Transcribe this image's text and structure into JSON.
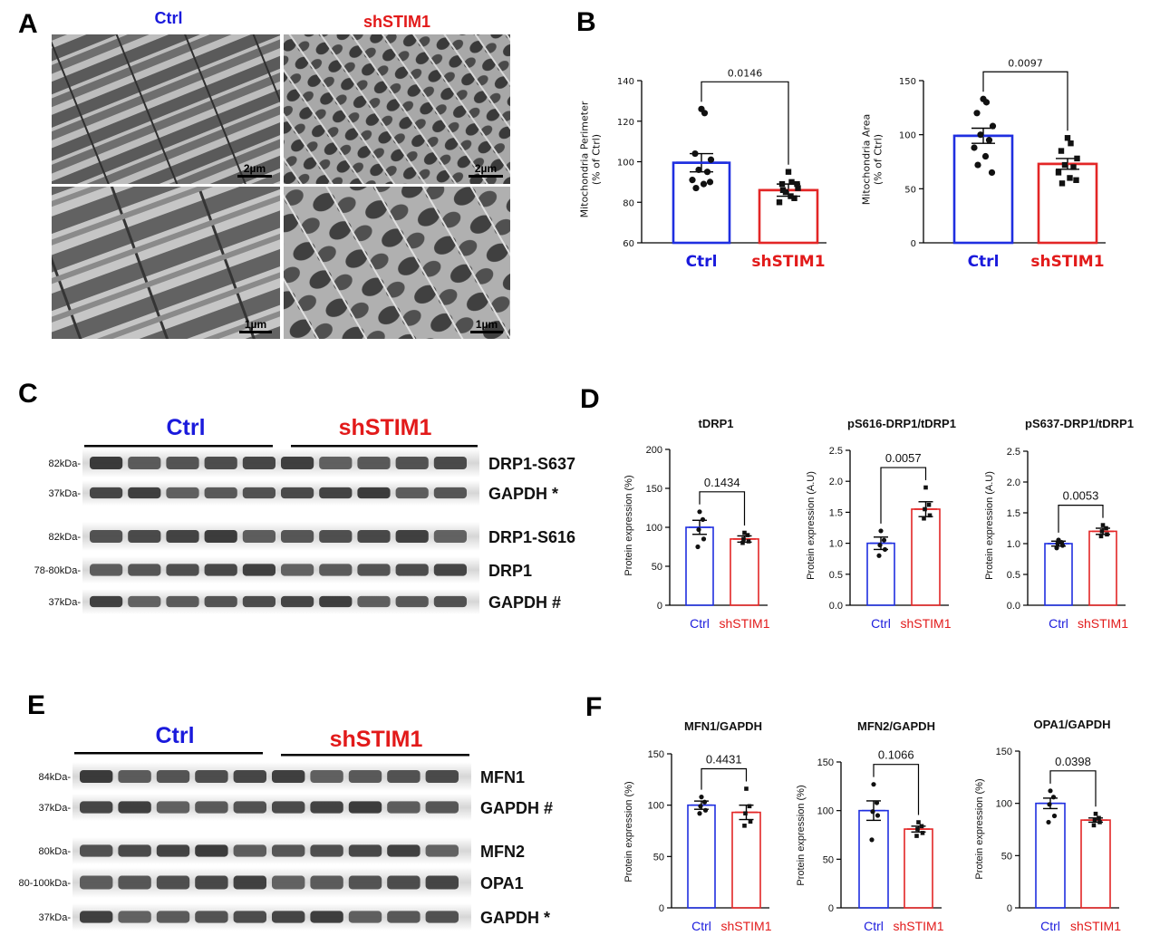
{
  "colors": {
    "ctrl": "#1a1adc",
    "sh": "#e21a1a",
    "bar_ctrl": "#1f2fe0",
    "bar_sh": "#e32626"
  },
  "panels": {
    "A": {
      "letter": "A",
      "ctrl_label": "Ctrl",
      "sh_label": "shSTIM1",
      "scale_top_left": "2µm",
      "scale_top_right": "2µm",
      "scale_bottom_left": "1µm",
      "scale_bottom_right": "1µm"
    },
    "B": {
      "letter": "B"
    },
    "C": {
      "letter": "C",
      "ctrl_label": "Ctrl",
      "sh_label": "shSTIM1",
      "rows": [
        {
          "mw": "82kDa-",
          "protein": "DRP1-S637"
        },
        {
          "mw": "37kDa-",
          "protein": "GAPDH *"
        },
        {
          "mw": "82kDa-",
          "protein": "DRP1-S616"
        },
        {
          "mw": "78-80kDa-",
          "protein": "DRP1"
        },
        {
          "mw": "37kDa-",
          "protein": "GAPDH #"
        }
      ]
    },
    "D": {
      "letter": "D"
    },
    "E": {
      "letter": "E",
      "ctrl_label": "Ctrl",
      "sh_label": "shSTIM1",
      "rows": [
        {
          "mw": "84kDa-",
          "protein": "MFN1"
        },
        {
          "mw": "37kDa-",
          "protein": "GAPDH #"
        },
        {
          "mw": "80kDa-",
          "protein": "MFN2"
        },
        {
          "mw": "80-100kDa-",
          "protein": "OPA1"
        },
        {
          "mw": "37kDa-",
          "protein": "GAPDH *"
        }
      ]
    },
    "F": {
      "letter": "F"
    }
  },
  "chart_data": [
    {
      "id": "B1",
      "type": "bar",
      "title": "",
      "ylabel": "Mitochondria Perimeter\n(% of Ctrl)",
      "categories": [
        "Ctrl",
        "shSTIM1"
      ],
      "values": [
        99.5,
        86
      ],
      "sem": [
        4.5,
        3
      ],
      "ylim": [
        60,
        140
      ],
      "yticks": [
        "60",
        "80",
        "100",
        "120",
        "140"
      ],
      "pvalue": "0.0146",
      "points": [
        [
          126,
          124,
          104,
          101,
          96,
          95,
          91,
          89,
          87,
          90
        ],
        [
          95,
          90,
          89,
          87,
          85,
          82,
          80,
          83,
          86,
          89
        ]
      ]
    },
    {
      "id": "B2",
      "type": "bar",
      "title": "",
      "ylabel": "Mitochondria Area\n(% of Ctrl)",
      "categories": [
        "Ctrl",
        "shSTIM1"
      ],
      "values": [
        99,
        73
      ],
      "sem": [
        7,
        5
      ],
      "ylim": [
        0,
        150
      ],
      "yticks": [
        "0",
        "50",
        "100",
        "150"
      ],
      "pvalue": "0.0097",
      "points": [
        [
          133,
          130,
          120,
          108,
          100,
          95,
          88,
          80,
          72,
          65
        ],
        [
          97,
          92,
          85,
          78,
          72,
          70,
          65,
          60,
          55,
          58
        ]
      ]
    },
    {
      "id": "D1",
      "type": "bar",
      "title": "tDRP1",
      "ylabel": "Protein expression (%)",
      "categories": [
        "Ctrl",
        "shSTIM1"
      ],
      "values": [
        100,
        85
      ],
      "sem": [
        9,
        4
      ],
      "ylim": [
        0,
        200
      ],
      "yticks": [
        "0",
        "50",
        "100",
        "150",
        "200"
      ],
      "pvalue": "0.1434",
      "points": [
        [
          120,
          110,
          97,
          85,
          75
        ],
        [
          93,
          90,
          85,
          82,
          80
        ]
      ]
    },
    {
      "id": "D2",
      "type": "bar",
      "title": "pS616-DRP1/tDRP1",
      "ylabel": "Protein expression (A.U)",
      "categories": [
        "Ctrl",
        "shSTIM1"
      ],
      "values": [
        1.0,
        1.55
      ],
      "sem": [
        0.1,
        0.12
      ],
      "ylim": [
        0,
        2.5
      ],
      "yticks": [
        "0.0",
        "0.5",
        "1.0",
        "1.5",
        "2.0",
        "2.5"
      ],
      "pvalue": "0.0057",
      "points": [
        [
          1.2,
          1.05,
          0.97,
          0.9,
          0.8
        ],
        [
          1.9,
          1.62,
          1.55,
          1.45,
          1.4
        ]
      ]
    },
    {
      "id": "D3",
      "type": "bar",
      "title": "pS637-DRP1/tDRP1",
      "ylabel": "Protein expression (A.U)",
      "categories": [
        "Ctrl",
        "shSTIM1"
      ],
      "values": [
        1.0,
        1.2
      ],
      "sem": [
        0.04,
        0.05
      ],
      "ylim": [
        0,
        2.5
      ],
      "yticks": [
        "0.0",
        "0.5",
        "1.0",
        "1.5",
        "2.0",
        "2.5"
      ],
      "pvalue": "0.0053",
      "points": [
        [
          1.06,
          1.02,
          1.0,
          0.97,
          0.93
        ],
        [
          1.3,
          1.25,
          1.2,
          1.15,
          1.12
        ]
      ]
    },
    {
      "id": "F1",
      "type": "bar",
      "title": "MFN1/GAPDH",
      "ylabel": "Protein expression (%)",
      "categories": [
        "Ctrl",
        "shSTIM1"
      ],
      "values": [
        100,
        93
      ],
      "sem": [
        4,
        7
      ],
      "ylim": [
        0,
        150
      ],
      "yticks": [
        "0",
        "50",
        "100",
        "150"
      ],
      "pvalue": "0.4431",
      "points": [
        [
          108,
          103,
          99,
          95,
          92
        ],
        [
          116,
          99,
          92,
          84,
          80
        ]
      ]
    },
    {
      "id": "F2",
      "type": "bar",
      "title": "MFN2/GAPDH",
      "ylabel": "Protein expression (%)",
      "categories": [
        "Ctrl",
        "shSTIM1"
      ],
      "values": [
        100,
        81
      ],
      "sem": [
        10,
        3
      ],
      "ylim": [
        0,
        150
      ],
      "yticks": [
        "0",
        "50",
        "100",
        "150"
      ],
      "pvalue": "0.1066",
      "points": [
        [
          127,
          108,
          99,
          95,
          70
        ],
        [
          88,
          84,
          81,
          77,
          74
        ]
      ]
    },
    {
      "id": "F3",
      "type": "bar",
      "title": "OPA1/GAPDH",
      "ylabel": "Protein expression (%)",
      "categories": [
        "Ctrl",
        "shSTIM1"
      ],
      "values": [
        100,
        84
      ],
      "sem": [
        5,
        2
      ],
      "ylim": [
        0,
        150
      ],
      "yticks": [
        "0",
        "50",
        "100",
        "150"
      ],
      "pvalue": "0.0398",
      "points": [
        [
          112,
          106,
          99,
          88,
          82
        ],
        [
          90,
          86,
          84,
          82,
          79
        ]
      ]
    }
  ]
}
